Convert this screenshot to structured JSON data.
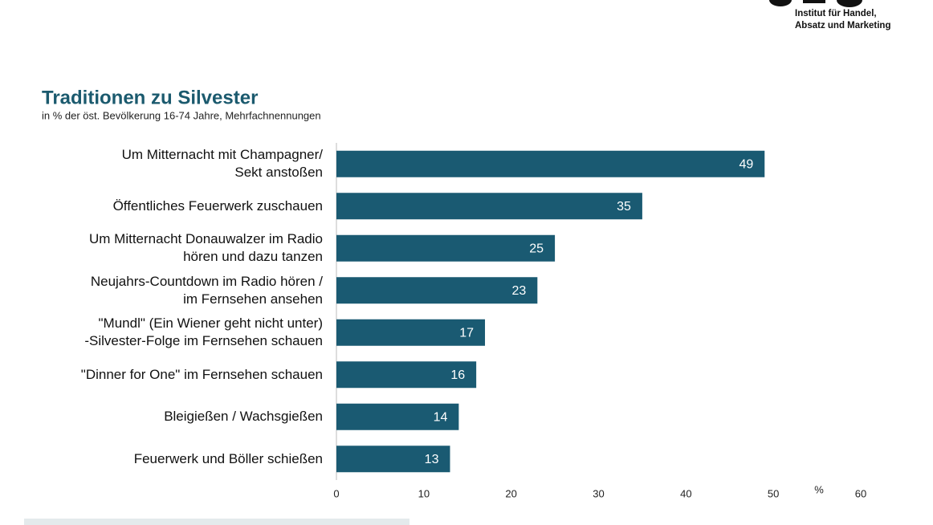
{
  "logo": {
    "lines": [
      "Institut für Handel,",
      "Absatz und Marketing"
    ]
  },
  "chart_data": {
    "type": "bar",
    "orientation": "horizontal",
    "title": "Traditionen zu Silvester",
    "subtitle": "in % der öst. Bevölkerung 16-74 Jahre, Mehrfachnennungen",
    "x_label": "%",
    "categories": [
      "Um Mitternacht mit Champagner/\nSekt anstoßen",
      "Öffentliches Feuerwerk zuschauen",
      "Um Mitternacht Donauwalzer im Radio\nhören und dazu tanzen",
      "Neujahrs-Countdown im Radio hören /\nim Fernsehen ansehen",
      "\"Mundl\" (Ein Wiener geht nicht unter)\n-Silvester-Folge im Fernsehen schauen",
      "\"Dinner for One\" im Fernsehen schauen",
      "Bleigießen / Wachsgießen",
      "Feuerwerk und Böller schießen"
    ],
    "values": [
      49,
      35,
      25,
      23,
      17,
      16,
      14,
      13
    ],
    "color": "#1a5a72",
    "xlim": [
      0,
      60
    ],
    "xticks": [
      0,
      10,
      20,
      30,
      40,
      50,
      60
    ],
    "grid": false
  }
}
